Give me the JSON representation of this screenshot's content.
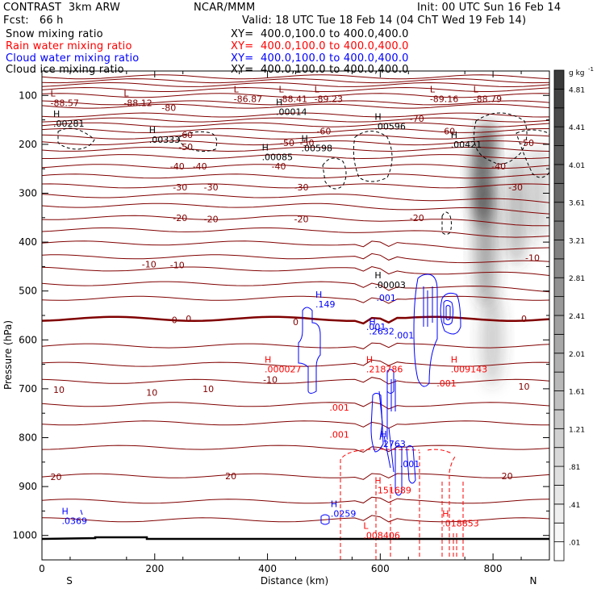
{
  "header": {
    "model": "CONTRAST  3km ARW",
    "org": "NCAR/MMM",
    "init": "Init: 00 UTC Sun 16 Feb 14",
    "fcst": "Fcst:   66 h",
    "valid": "Valid: 18 UTC Tue 18 Feb 14 (04 ChT Wed 19 Feb 14)"
  },
  "legend": [
    {
      "name": "Snow mixing ratio",
      "xy": "XY=  400.0,100.0 to 400.0,400.0",
      "color": "#000000"
    },
    {
      "name": "Rain water mixing ratio",
      "xy": "XY=  400.0,100.0 to 400.0,400.0",
      "color": "#ff0000"
    },
    {
      "name": "Cloud water mixing ratio",
      "xy": "XY=  400.0,100.0 to 400.0,400.0",
      "color": "#0000ff"
    },
    {
      "name": "Cloud ice mixing ratio",
      "xy": "XY=  400.0,100.0 to 400.0,400.0",
      "color": "#000000"
    }
  ],
  "chart_data": {
    "type": "contour-cross-section",
    "xlabel": "Distance (km)",
    "ylabel": "Pressure (hPa)",
    "x_range": [
      0,
      900
    ],
    "y_range": [
      50,
      1050
    ],
    "y_inverted": true,
    "x_ticks": [
      "0",
      "200",
      "400",
      "600",
      "800"
    ],
    "x_tick_values": [
      0,
      200,
      400,
      600,
      800
    ],
    "y_ticks": [
      "100",
      "200",
      "300",
      "400",
      "500",
      "600",
      "700",
      "800",
      "900",
      "1000"
    ],
    "y_tick_values": [
      100,
      200,
      300,
      400,
      500,
      600,
      700,
      800,
      900,
      1000
    ],
    "x_end_labels": {
      "left": "S",
      "right": "N"
    },
    "colorbar": {
      "unit": "g kg",
      "unit_sup": "-1",
      "labels": [
        "4.81",
        "4.41",
        "4.01",
        "3.61",
        "3.21",
        "2.81",
        "2.41",
        "2.01",
        "1.61",
        "1.21",
        ".81",
        ".41",
        ".01"
      ],
      "levels": [
        0.01,
        0.21,
        0.41,
        0.61,
        0.81,
        1.01,
        1.21,
        1.41,
        1.61,
        1.81,
        2.01,
        2.21,
        2.41,
        2.61,
        2.81,
        3.01,
        3.21,
        3.41,
        3.61,
        3.81,
        4.01,
        4.21,
        4.41,
        4.61,
        4.81,
        5.01
      ]
    },
    "temperature_contours": {
      "color": "#800000",
      "unit": "degC",
      "levels": [
        -80,
        -70,
        -60,
        -50,
        -40,
        -30,
        -20,
        -10,
        0,
        10,
        20
      ],
      "labels": [
        {
          "text": "-80",
          "x": 225,
          "p": 125
        },
        {
          "text": "-70",
          "x": 665,
          "p": 147
        },
        {
          "text": "-60",
          "x": 255,
          "p": 180
        },
        {
          "text": "-60",
          "x": 500,
          "p": 173
        },
        {
          "text": "-60",
          "x": 720,
          "p": 173
        },
        {
          "text": "-50",
          "x": 255,
          "p": 205
        },
        {
          "text": "-50",
          "x": 435,
          "p": 197
        },
        {
          "text": "-50",
          "x": 470,
          "p": 197
        },
        {
          "text": "-50",
          "x": 860,
          "p": 197
        },
        {
          "text": "-40",
          "x": 240,
          "p": 245
        },
        {
          "text": "-40",
          "x": 280,
          "p": 245
        },
        {
          "text": "-40",
          "x": 420,
          "p": 245
        },
        {
          "text": "-40",
          "x": 810,
          "p": 245
        },
        {
          "text": "-30",
          "x": 245,
          "p": 288
        },
        {
          "text": "-30",
          "x": 300,
          "p": 288
        },
        {
          "text": "-30",
          "x": 460,
          "p": 288
        },
        {
          "text": "-30",
          "x": 840,
          "p": 288
        },
        {
          "text": "-20",
          "x": 245,
          "p": 350
        },
        {
          "text": "-20",
          "x": 300,
          "p": 353
        },
        {
          "text": "-20",
          "x": 460,
          "p": 353
        },
        {
          "text": "-20",
          "x": 665,
          "p": 350
        },
        {
          "text": "-10",
          "x": 190,
          "p": 445
        },
        {
          "text": "-10",
          "x": 240,
          "p": 447
        },
        {
          "text": "-10",
          "x": 870,
          "p": 432
        },
        {
          "text": "0",
          "x": 235,
          "p": 559
        },
        {
          "text": "0",
          "x": 260,
          "p": 557
        },
        {
          "text": "0",
          "x": 450,
          "p": 563
        },
        {
          "text": "0",
          "x": 855,
          "p": 557
        },
        {
          "text": "-10",
          "x": 405,
          "p": 681
        },
        {
          "text": "10",
          "x": 30,
          "p": 702
        },
        {
          "text": "10",
          "x": 195,
          "p": 708
        },
        {
          "text": "10",
          "x": 295,
          "p": 700
        },
        {
          "text": "10",
          "x": 855,
          "p": 695
        },
        {
          "text": "20",
          "x": 25,
          "p": 880
        },
        {
          "text": "20",
          "x": 335,
          "p": 878
        },
        {
          "text": "20",
          "x": 825,
          "p": 878
        }
      ]
    },
    "cloud_ice_extrema": [
      {
        "type": "L",
        "value": "-88.57",
        "x": 15,
        "p": 115
      },
      {
        "type": "L",
        "value": "-88.12",
        "x": 145,
        "p": 115
      },
      {
        "type": "L",
        "value": "-86.87",
        "x": 340,
        "p": 107
      },
      {
        "type": "L",
        "value": "-88.41",
        "x": 420,
        "p": 107
      },
      {
        "type": "L",
        "value": "-89.23",
        "x": 483,
        "p": 107
      },
      {
        "type": "L",
        "value": "-89.16",
        "x": 688,
        "p": 107
      },
      {
        "type": "L",
        "value": "-88.79",
        "x": 765,
        "p": 107
      },
      {
        "type": "H",
        "value": ".00014",
        "x": 415,
        "p": 133
      },
      {
        "type": "H",
        "value": ".00281",
        "x": 20,
        "p": 157
      },
      {
        "type": "H",
        "value": ".00333",
        "x": 190,
        "p": 190
      },
      {
        "type": "H",
        "value": ".00596",
        "x": 590,
        "p": 163
      },
      {
        "type": "H",
        "value": ".00598",
        "x": 460,
        "p": 208
      },
      {
        "type": "H",
        "value": ".00085",
        "x": 390,
        "p": 226
      },
      {
        "type": "H",
        "value": ".00421",
        "x": 725,
        "p": 200
      },
      {
        "type": "H",
        "value": ".00003",
        "x": 590,
        "p": 487
      }
    ],
    "cloud_water_extrema": [
      {
        "type": "H",
        "value": ".149",
        "x": 485,
        "p": 527
      },
      {
        "type": "H",
        "value": ".2632",
        "x": 580,
        "p": 582
      },
      {
        "type": "H",
        "value": ".2763",
        "x": 600,
        "p": 812
      },
      {
        "type": "H",
        "value": ".0259",
        "x": 512,
        "p": 955
      },
      {
        "type": "H",
        "value": ".0369",
        "x": 35,
        "p": 970
      }
    ],
    "cloud_water_labels": [
      ".001",
      ".001",
      ".001",
      ".001"
    ],
    "rain_water_extrema": [
      {
        "type": "H",
        "value": ".000027",
        "x": 395,
        "p": 660
      },
      {
        "type": "H",
        "value": ".218786",
        "x": 575,
        "p": 660
      },
      {
        "type": "H",
        "value": ".009143",
        "x": 725,
        "p": 660
      },
      {
        "type": "H",
        "value": ".151689",
        "x": 590,
        "p": 907
      },
      {
        "type": "H",
        "value": ".018853",
        "x": 710,
        "p": 975
      },
      {
        "type": "L",
        "value": ".008406",
        "x": 570,
        "p": 1000
      }
    ],
    "rain_water_labels": [
      ".001",
      ".001",
      ".001"
    ]
  }
}
